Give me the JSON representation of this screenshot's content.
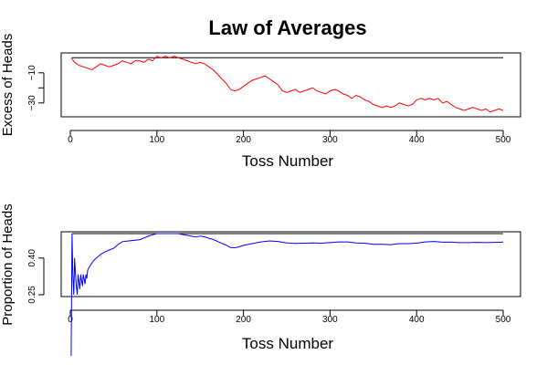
{
  "title": "Law of Averages",
  "chart_data": [
    {
      "type": "line",
      "xlabel": "Toss Number",
      "ylabel": "Excess of Heads",
      "xlim": [
        0,
        500
      ],
      "ylim": [
        -38,
        2
      ],
      "xticks": [
        0,
        100,
        200,
        300,
        400,
        500
      ],
      "yticks": [
        -10,
        -20,
        -30
      ],
      "yticklabels": [
        "−10",
        "−30"
      ],
      "reference_line": 0,
      "series_color": "#ff0000",
      "reference_color": "#000000",
      "x": [
        1,
        5,
        10,
        15,
        20,
        25,
        30,
        35,
        40,
        45,
        50,
        55,
        60,
        65,
        70,
        75,
        80,
        85,
        90,
        95,
        100,
        105,
        110,
        115,
        120,
        125,
        130,
        135,
        140,
        145,
        150,
        155,
        160,
        165,
        170,
        175,
        180,
        185,
        190,
        195,
        200,
        205,
        210,
        215,
        220,
        225,
        230,
        235,
        240,
        245,
        250,
        255,
        260,
        265,
        270,
        275,
        280,
        285,
        290,
        295,
        300,
        305,
        310,
        315,
        320,
        325,
        330,
        335,
        340,
        345,
        350,
        355,
        360,
        365,
        370,
        375,
        380,
        385,
        390,
        395,
        400,
        405,
        410,
        415,
        420,
        425,
        430,
        435,
        440,
        445,
        450,
        455,
        460,
        465,
        470,
        475,
        480,
        485,
        490,
        495,
        500
      ],
      "y": [
        0,
        -3,
        -5,
        -6,
        -7,
        -8,
        -6,
        -4,
        -5,
        -6,
        -5,
        -4,
        -2,
        -3,
        -4,
        -2,
        -2,
        -3,
        -1,
        -2,
        1,
        0,
        1,
        0,
        1,
        0,
        -1,
        -2,
        -3,
        -4,
        -3,
        -4,
        -6,
        -8,
        -11,
        -14,
        -17,
        -21,
        -22,
        -21,
        -19,
        -17,
        -15,
        -14,
        -13,
        -12,
        -14,
        -16,
        -18,
        -22,
        -23,
        -22,
        -21,
        -23,
        -22,
        -21,
        -20,
        -22,
        -23,
        -24,
        -22,
        -21,
        -22,
        -24,
        -25,
        -27,
        -25,
        -26,
        -28,
        -29,
        -31,
        -32,
        -33,
        -32,
        -33,
        -32,
        -30,
        -31,
        -32,
        -31,
        -28,
        -27,
        -28,
        -27,
        -28,
        -27,
        -30,
        -29,
        -31,
        -33,
        -34,
        -35,
        -34,
        -33,
        -34,
        -35,
        -34,
        -36,
        -35,
        -34,
        -35
      ]
    },
    {
      "type": "line",
      "xlabel": "Toss Number",
      "ylabel": "Proportion of Heads",
      "xlim": [
        0,
        500
      ],
      "ylim": [
        0.25,
        0.5
      ],
      "xticks": [
        0,
        100,
        200,
        300,
        400,
        500
      ],
      "yticks": [
        0.25,
        0.4
      ],
      "yticklabels": [
        "0.25",
        "0.40"
      ],
      "reference_line": 0.5,
      "series_color": "#0000ff",
      "reference_color": "#000000",
      "x": [
        1,
        2,
        3,
        4,
        5,
        6,
        7,
        8,
        9,
        10,
        11,
        12,
        13,
        14,
        15,
        16,
        17,
        18,
        19,
        20,
        22,
        24,
        26,
        28,
        30,
        33,
        36,
        40,
        45,
        50,
        55,
        60,
        65,
        70,
        75,
        80,
        85,
        90,
        95,
        100,
        105,
        110,
        115,
        120,
        125,
        130,
        135,
        140,
        145,
        150,
        155,
        160,
        165,
        170,
        175,
        180,
        185,
        190,
        195,
        200,
        210,
        220,
        230,
        240,
        250,
        260,
        270,
        280,
        290,
        300,
        310,
        320,
        330,
        340,
        350,
        360,
        370,
        380,
        390,
        400,
        410,
        420,
        430,
        440,
        450,
        460,
        470,
        480,
        490,
        500
      ],
      "y": [
        0.0,
        0.5,
        0.333,
        0.25,
        0.4,
        0.333,
        0.286,
        0.25,
        0.333,
        0.3,
        0.273,
        0.333,
        0.308,
        0.286,
        0.333,
        0.313,
        0.294,
        0.333,
        0.316,
        0.35,
        0.364,
        0.375,
        0.385,
        0.393,
        0.4,
        0.409,
        0.417,
        0.425,
        0.433,
        0.44,
        0.455,
        0.467,
        0.469,
        0.471,
        0.473,
        0.475,
        0.482,
        0.489,
        0.495,
        0.5,
        0.5,
        0.5,
        0.5,
        0.5,
        0.5,
        0.496,
        0.493,
        0.489,
        0.486,
        0.49,
        0.487,
        0.481,
        0.476,
        0.468,
        0.46,
        0.453,
        0.443,
        0.442,
        0.446,
        0.452,
        0.459,
        0.466,
        0.47,
        0.468,
        0.462,
        0.46,
        0.461,
        0.462,
        0.461,
        0.463,
        0.466,
        0.466,
        0.462,
        0.461,
        0.456,
        0.456,
        0.455,
        0.459,
        0.459,
        0.461,
        0.466,
        0.468,
        0.465,
        0.465,
        0.463,
        0.463,
        0.464,
        0.463,
        0.464,
        0.465
      ]
    }
  ]
}
